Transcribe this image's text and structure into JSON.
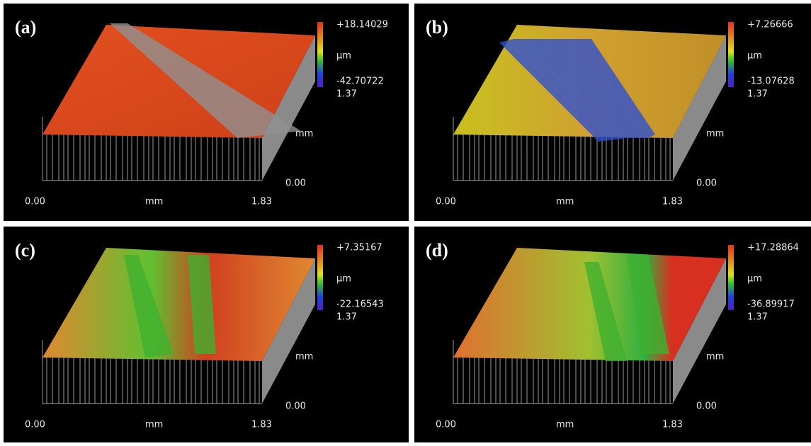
{
  "panels": [
    {
      "label": "(a)",
      "max": "+18.14029",
      "unit": "µm",
      "min": "-42.70722",
      "z_top": "1.37",
      "z_unit": "mm",
      "z_bottom": "0.00",
      "x_start": "0.00",
      "x_unit": "mm",
      "x_end": "1.83"
    },
    {
      "label": "(b)",
      "max": "+7.26666",
      "unit": "µm",
      "min": "-13.07628",
      "z_top": "1.37",
      "z_unit": "mm",
      "z_bottom": "0.00",
      "x_start": "0.00",
      "x_unit": "mm",
      "x_end": "1.83"
    },
    {
      "label": "(c)",
      "max": "+7.35167",
      "unit": "µm",
      "min": "-22.16543",
      "z_top": "1.37",
      "z_unit": "mm",
      "z_bottom": "0.00",
      "x_start": "0.00",
      "x_unit": "mm",
      "x_end": "1.83"
    },
    {
      "label": "(d)",
      "max": "+17.28864",
      "unit": "µm",
      "min": "-36.89917",
      "z_top": "1.37",
      "z_unit": "mm",
      "z_bottom": "0.00",
      "x_start": "0.00",
      "x_unit": "mm",
      "x_end": "1.83"
    }
  ]
}
